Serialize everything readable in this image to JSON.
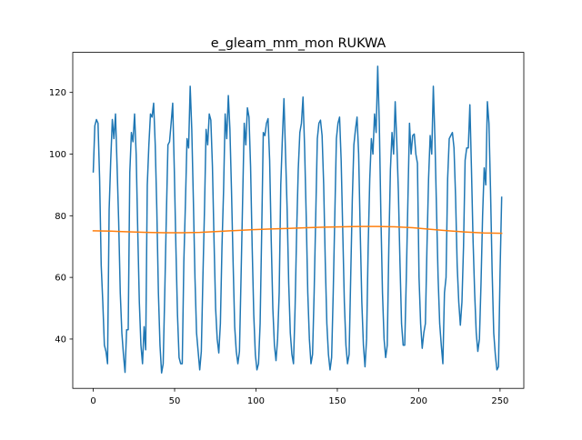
{
  "chart_data": {
    "type": "line",
    "title": "e_gleam_mm_mon RUKWA",
    "xlabel": "",
    "ylabel": "",
    "xlim": [
      -12.6,
      264.6
    ],
    "ylim": [
      24.0,
      133.0
    ],
    "x_ticks": [
      0,
      50,
      100,
      150,
      200,
      250
    ],
    "y_ticks": [
      40,
      60,
      80,
      100,
      120
    ],
    "grid": false,
    "legend": "none",
    "series": [
      {
        "color": "#1f77b4",
        "values": [
          94.2,
          109.2,
          111.2,
          110.0,
          92.0,
          64.0,
          52.0,
          38.0,
          36.0,
          32.0,
          82.0,
          98.0,
          111.2,
          105.0,
          113.0,
          96.0,
          78.0,
          55.0,
          42.0,
          35.0,
          29.2,
          43.0,
          43.0,
          94.0,
          107.0,
          104.0,
          113.0,
          100.0,
          75.0,
          52.0,
          38.0,
          32.0,
          44.0,
          36.5,
          90.0,
          103.0,
          113.0,
          112.0,
          116.5,
          103.0,
          82.0,
          55.0,
          38.0,
          29.0,
          32.0,
          55.0,
          80.0,
          103.0,
          104.0,
          110.0,
          116.5,
          95.0,
          70.0,
          48.0,
          34.0,
          32.0,
          32.0,
          65.0,
          84.0,
          105.0,
          102.0,
          122.0,
          108.0,
          85.0,
          60.0,
          42.0,
          36.0,
          30.0,
          36.0,
          60.0,
          82.0,
          108.0,
          103.0,
          113.0,
          111.0,
          96.0,
          72.0,
          50.0,
          40.0,
          35.5,
          45.0,
          70.0,
          88.0,
          113.0,
          105.0,
          119.0,
          108.0,
          88.0,
          65.0,
          44.0,
          36.0,
          32.0,
          36.0,
          60.0,
          85.0,
          110.0,
          103.0,
          115.0,
          112.0,
          96.0,
          70.0,
          48.0,
          35.0,
          30.0,
          32.0,
          45.0,
          75.0,
          107.0,
          106.0,
          110.0,
          111.5,
          98.0,
          72.0,
          50.0,
          38.0,
          33.0,
          40.0,
          55.0,
          90.0,
          105.0,
          118.0,
          100.0,
          82.0,
          58.0,
          42.0,
          35.0,
          32.0,
          50.0,
          75.0,
          95.0,
          107.0,
          110.0,
          118.5,
          102.0,
          80.0,
          55.0,
          40.0,
          32.0,
          35.0,
          55.0,
          80.0,
          105.0,
          110.0,
          111.0,
          106.0,
          90.0,
          65.0,
          45.0,
          35.0,
          30.0,
          34.0,
          55.0,
          80.0,
          105.0,
          110.0,
          112.0,
          98.0,
          75.0,
          52.0,
          38.0,
          32.0,
          35.0,
          60.0,
          85.0,
          103.0,
          108.0,
          112.0,
          100.0,
          75.0,
          52.0,
          38.0,
          31.0,
          40.0,
          70.0,
          92.0,
          105.0,
          100.0,
          113.0,
          107.0,
          128.5,
          110.0,
          80.0,
          55.0,
          40.0,
          34.0,
          38.0,
          70.0,
          95.0,
          107.0,
          100.0,
          117.0,
          104.0,
          88.0,
          65.0,
          45.0,
          38.0,
          38.0,
          60.0,
          85.0,
          110.0,
          100.0,
          106.0,
          106.5,
          100.0,
          97.0,
          60.0,
          45.0,
          37.0,
          42.0,
          45.0,
          70.0,
          92.0,
          106.0,
          100.0,
          122.0,
          105.0,
          82.0,
          60.0,
          45.0,
          38.0,
          32.0,
          55.0,
          60.0,
          92.0,
          105.0,
          106.0,
          107.0,
          102.0,
          86.0,
          64.0,
          52.0,
          44.5,
          52.0,
          70.0,
          98.0,
          102.0,
          102.0,
          116.0,
          95.0,
          72.0,
          55.0,
          42.0,
          36.0,
          40.0,
          58.0,
          80.0,
          95.5,
          90.0,
          117.0,
          110.0,
          88.0,
          62.0,
          42.0,
          35.0,
          30.0,
          31.0,
          62.0,
          86.0
        ]
      },
      {
        "color": "#ff7f0e",
        "values": [
          75.1,
          75.0,
          74.8,
          74.6,
          74.5,
          74.5,
          74.6,
          74.9,
          75.2,
          75.5,
          75.7,
          75.9,
          76.1,
          76.3,
          76.4,
          76.5,
          76.5,
          76.4,
          76.1,
          75.6,
          75.1,
          74.7,
          74.4,
          74.3
        ]
      }
    ]
  }
}
